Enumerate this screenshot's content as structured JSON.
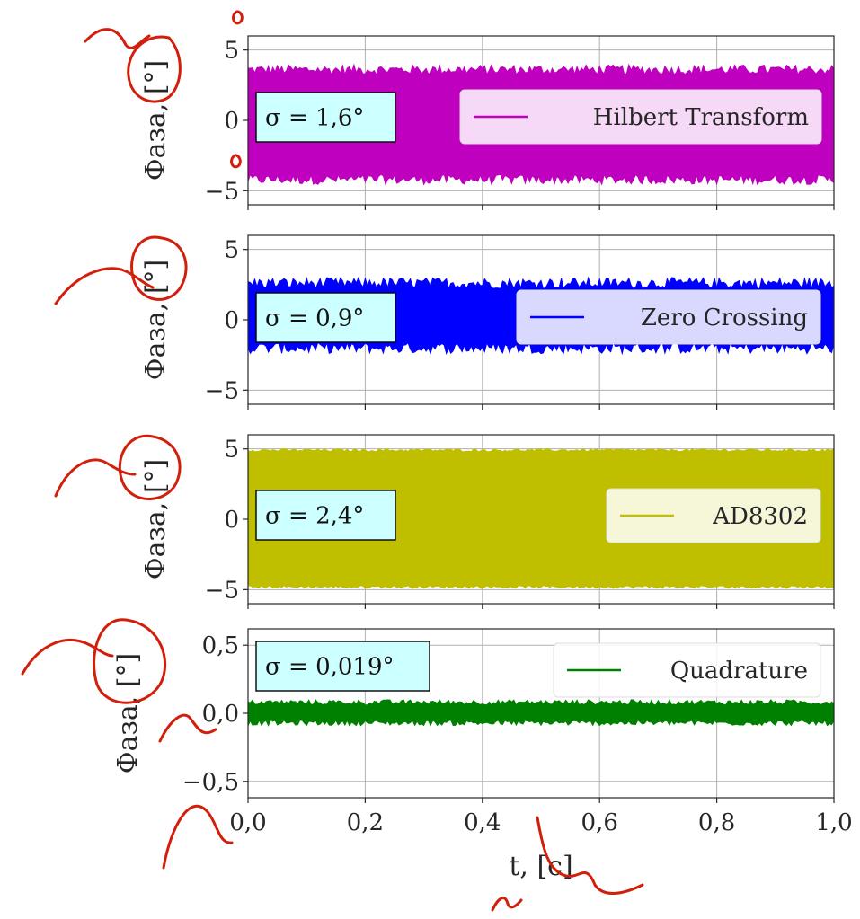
{
  "chart_data": [
    {
      "type": "line",
      "ylabel": "Фаза, [°]",
      "xlim": [
        0,
        1.0
      ],
      "ylim": [
        -6,
        6
      ],
      "yticks": [
        -5,
        0,
        5
      ],
      "ytick_labels": [
        "−5",
        "0",
        "5"
      ],
      "grid": true,
      "legend_placement": "center-right",
      "series": [
        {
          "name": "Hilbert Transform",
          "color": "#bf00bf",
          "low": -4.2,
          "high": 3.6,
          "jitter": 0.35
        }
      ],
      "annotation": "σ = 1,6°",
      "annotation_placement": "center-left"
    },
    {
      "type": "line",
      "ylabel": "Фаза, [°]",
      "xlim": [
        0,
        1.0
      ],
      "ylim": [
        -6,
        6
      ],
      "yticks": [
        -5,
        0,
        5
      ],
      "ytick_labels": [
        "−5",
        "0",
        "5"
      ],
      "grid": true,
      "legend_placement": "center-right",
      "series": [
        {
          "name": "Zero Crossing",
          "color": "#0000ff",
          "low": -2.0,
          "high": 2.6,
          "jitter": 0.4
        }
      ],
      "annotation": "σ = 0,9°",
      "annotation_placement": "center-left"
    },
    {
      "type": "line",
      "ylabel": "Фаза, [°]",
      "xlim": [
        0,
        1.0
      ],
      "ylim": [
        -6,
        6
      ],
      "yticks": [
        -5,
        0,
        5
      ],
      "ytick_labels": [
        "−5",
        "0",
        "5"
      ],
      "grid": true,
      "legend_placement": "center-right",
      "series": [
        {
          "name": "AD8302",
          "color": "#bfbf00",
          "low": -4.8,
          "high": 4.9,
          "jitter": 0.1
        }
      ],
      "annotation": "σ = 2,4°",
      "annotation_placement": "center-left"
    },
    {
      "type": "line",
      "ylabel": "Фаза, [°]",
      "xlabel": "t, [c]",
      "xlim": [
        0,
        1.0
      ],
      "ylim": [
        -0.62,
        0.62
      ],
      "xticks": [
        0,
        0.2,
        0.4,
        0.6,
        0.8,
        1.0
      ],
      "xtick_labels": [
        "0,0",
        "0,2",
        "0,4",
        "0,6",
        "0,8",
        "1,0"
      ],
      "yticks": [
        -0.5,
        0,
        0.5
      ],
      "ytick_labels": [
        "−0,5",
        "0,0",
        "0,5"
      ],
      "grid": true,
      "legend_placement": "upper-right",
      "series": [
        {
          "name": "Quadrature",
          "color": "#008000",
          "low": -0.07,
          "high": 0.08,
          "jitter": 0.02
        }
      ],
      "annotation": "σ = 0,019°",
      "annotation_placement": "upper-left"
    }
  ]
}
